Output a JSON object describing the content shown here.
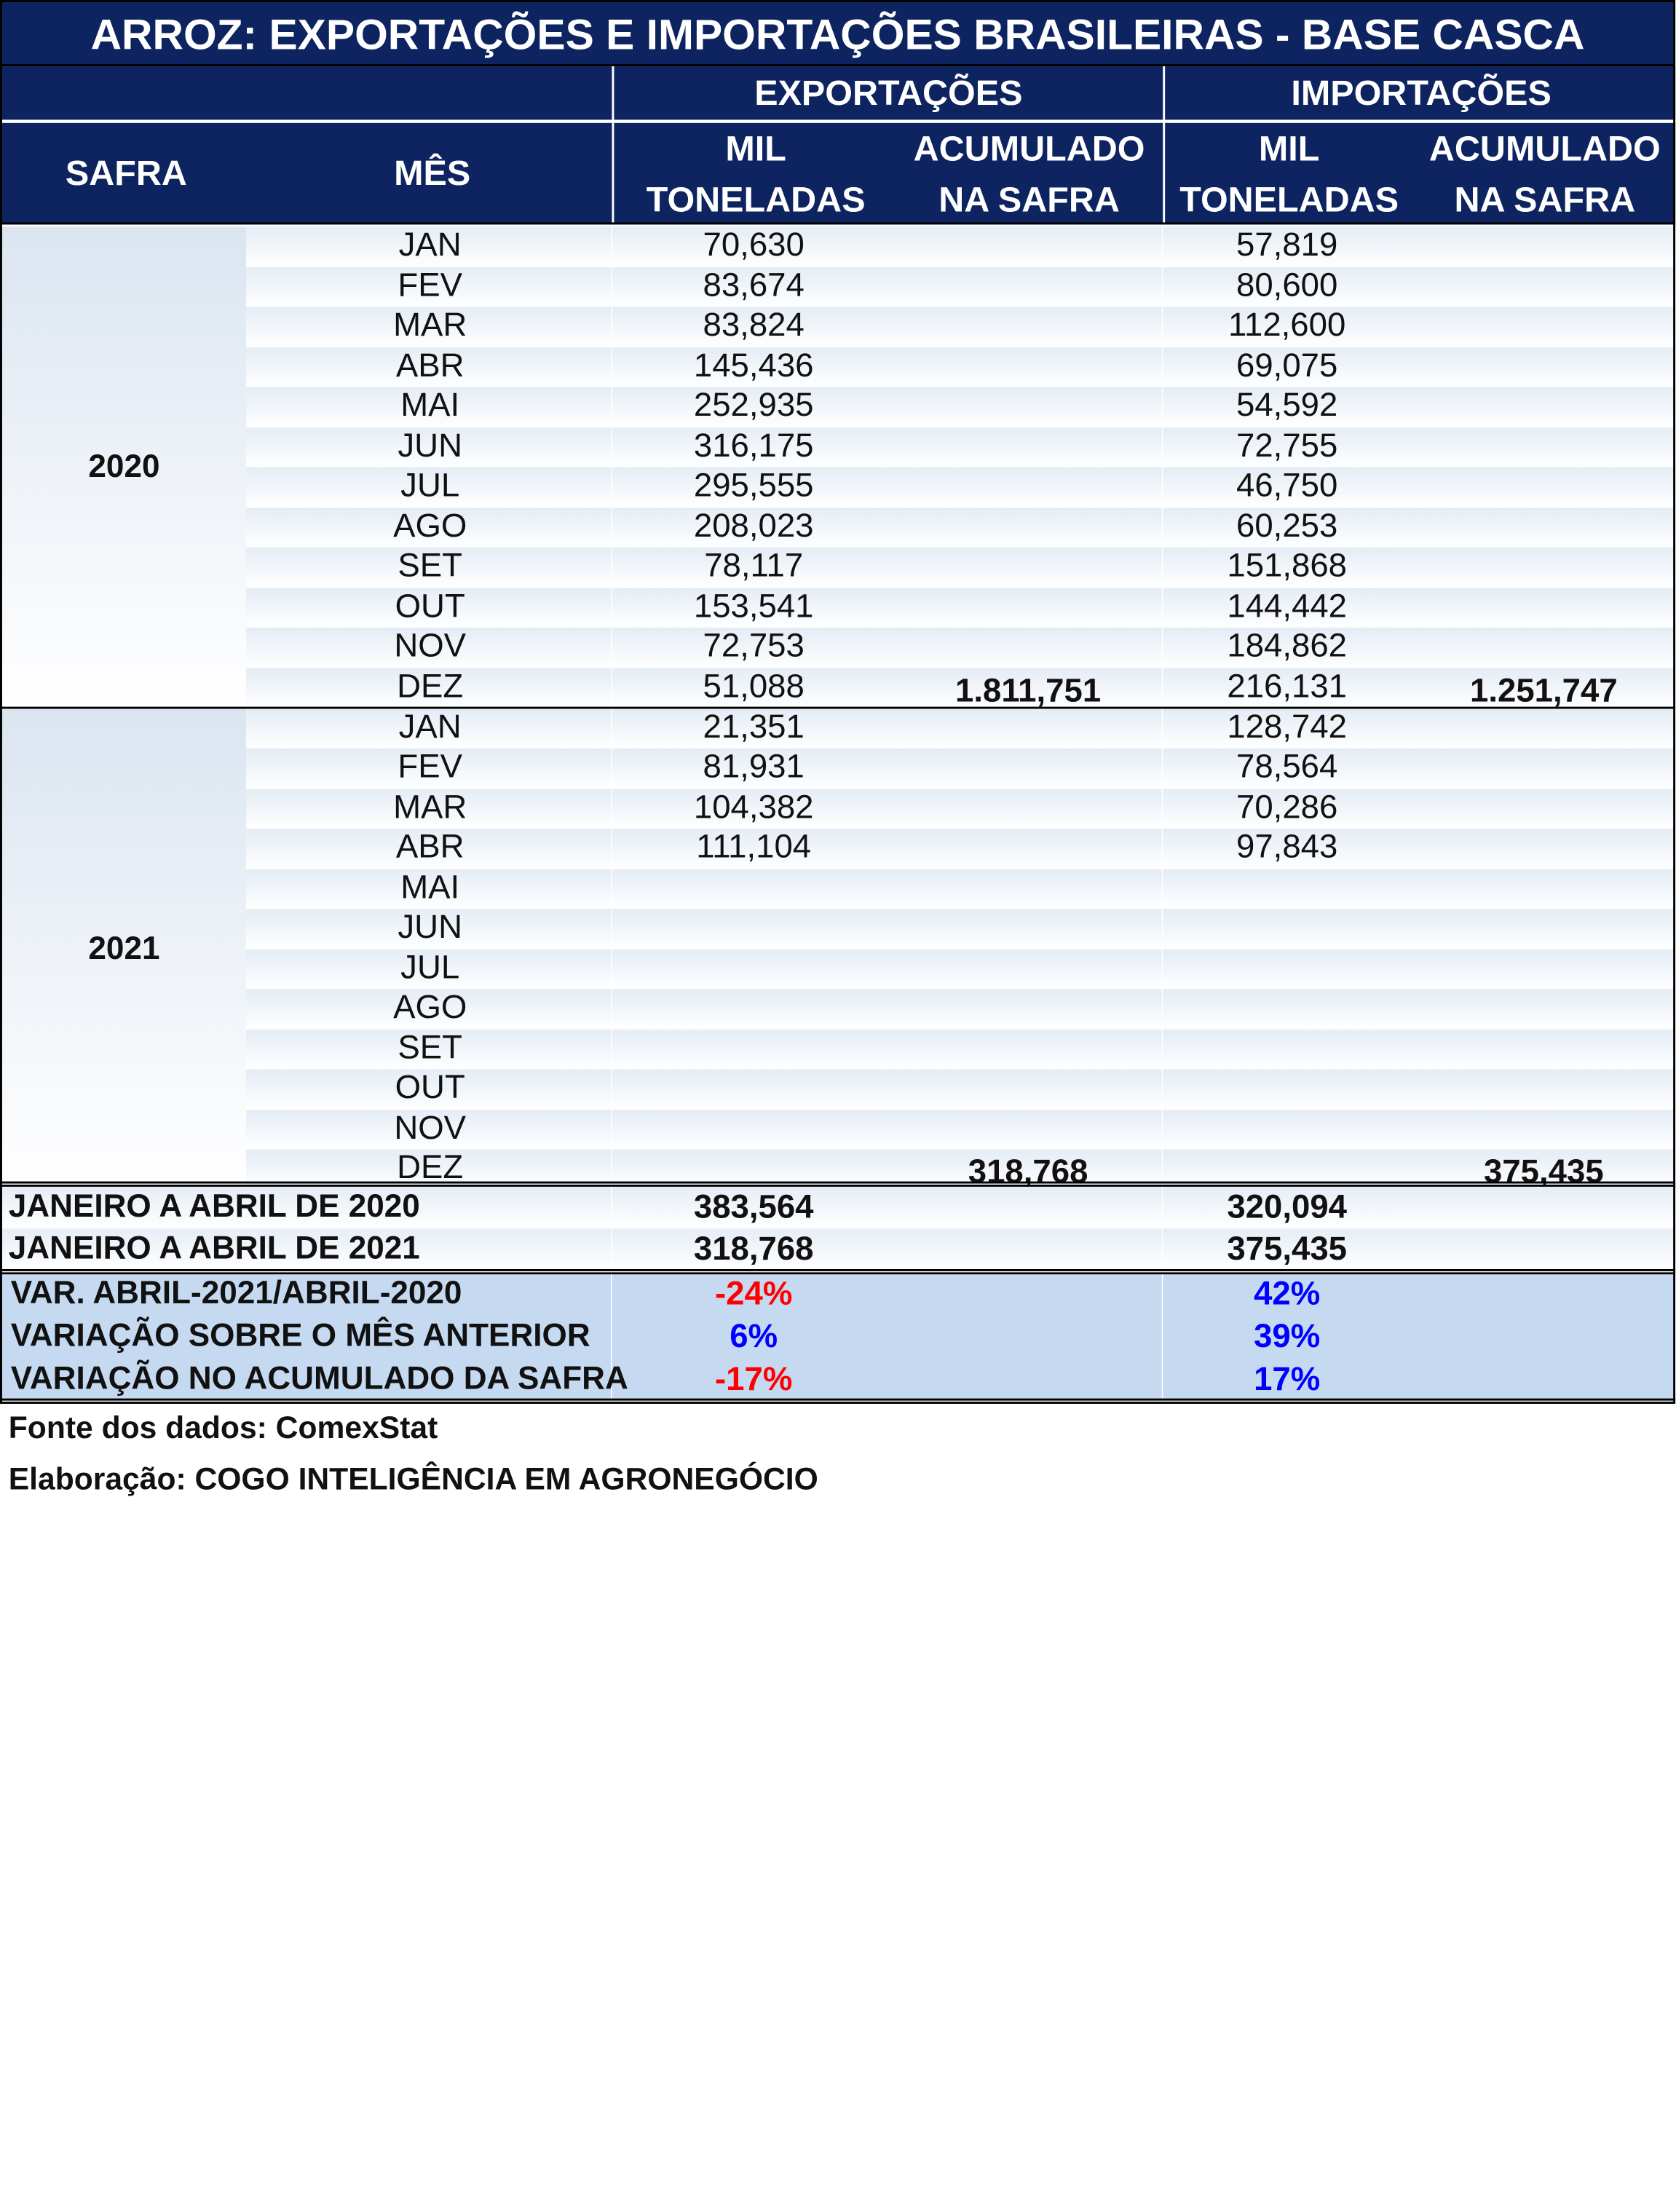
{
  "title": "ARROZ: EXPORTAÇÕES E IMPORTAÇÕES BRASILEIRAS - BASE CASCA",
  "header": {
    "safra": "SAFRA",
    "mes": "MÊS",
    "exportacoes": "EXPORTAÇÕES",
    "importacoes": "IMPORTAÇÕES",
    "mil": "MIL",
    "toneladas": "TONELADAS",
    "acumulado": "ACUMULADO",
    "na_safra": "NA SAFRA"
  },
  "safras": [
    {
      "year": "2020",
      "months": [
        {
          "mes": "JAN",
          "exp": "70,630",
          "imp": "57,819"
        },
        {
          "mes": "FEV",
          "exp": "83,674",
          "imp": "80,600"
        },
        {
          "mes": "MAR",
          "exp": "83,824",
          "imp": "112,600"
        },
        {
          "mes": "ABR",
          "exp": "145,436",
          "imp": "69,075"
        },
        {
          "mes": "MAI",
          "exp": "252,935",
          "imp": "54,592"
        },
        {
          "mes": "JUN",
          "exp": "316,175",
          "imp": "72,755"
        },
        {
          "mes": "JUL",
          "exp": "295,555",
          "imp": "46,750"
        },
        {
          "mes": "AGO",
          "exp": "208,023",
          "imp": "60,253"
        },
        {
          "mes": "SET",
          "exp": "78,117",
          "imp": "151,868"
        },
        {
          "mes": "OUT",
          "exp": "153,541",
          "imp": "144,442"
        },
        {
          "mes": "NOV",
          "exp": "72,753",
          "imp": "184,862"
        },
        {
          "mes": "DEZ",
          "exp": "51,088",
          "imp": "216,131"
        }
      ],
      "acum_exp": "1.811,751",
      "acum_imp": "1.251,747"
    },
    {
      "year": "2021",
      "months": [
        {
          "mes": "JAN",
          "exp": "21,351",
          "imp": "128,742"
        },
        {
          "mes": "FEV",
          "exp": "81,931",
          "imp": "78,564"
        },
        {
          "mes": "MAR",
          "exp": "104,382",
          "imp": "70,286"
        },
        {
          "mes": "ABR",
          "exp": "111,104",
          "imp": "97,843"
        },
        {
          "mes": "MAI",
          "exp": "",
          "imp": ""
        },
        {
          "mes": "JUN",
          "exp": "",
          "imp": ""
        },
        {
          "mes": "JUL",
          "exp": "",
          "imp": ""
        },
        {
          "mes": "AGO",
          "exp": "",
          "imp": ""
        },
        {
          "mes": "SET",
          "exp": "",
          "imp": ""
        },
        {
          "mes": "OUT",
          "exp": "",
          "imp": ""
        },
        {
          "mes": "NOV",
          "exp": "",
          "imp": ""
        },
        {
          "mes": "DEZ",
          "exp": "",
          "imp": ""
        }
      ],
      "acum_exp": "318,768",
      "acum_imp": "375,435"
    }
  ],
  "summary": [
    {
      "label": "JANEIRO A ABRIL DE 2020",
      "exp": "383,564",
      "imp": "320,094"
    },
    {
      "label": "JANEIRO A ABRIL DE 2021",
      "exp": "318,768",
      "imp": "375,435"
    }
  ],
  "variations": [
    {
      "label": "VAR. ABRIL-2021/ABRIL-2020",
      "exp": "-24%",
      "imp": "42%"
    },
    {
      "label": "VARIAÇÃO SOBRE O MÊS ANTERIOR",
      "exp": "6%",
      "imp": "39%"
    },
    {
      "label": "VARIAÇÃO NO ACUMULADO DA SAFRA",
      "exp": "-17%",
      "imp": "17%"
    }
  ],
  "colors": {
    "header_bg": "#0d2460",
    "negative": "#ff0000",
    "positive": "#0000ff",
    "var_bg": "#c5d9f1"
  },
  "footer": {
    "fonte": "Fonte dos dados: ComexStat",
    "elaboracao": "Elaboração: COGO INTELIGÊNCIA EM AGRONEGÓCIO"
  }
}
